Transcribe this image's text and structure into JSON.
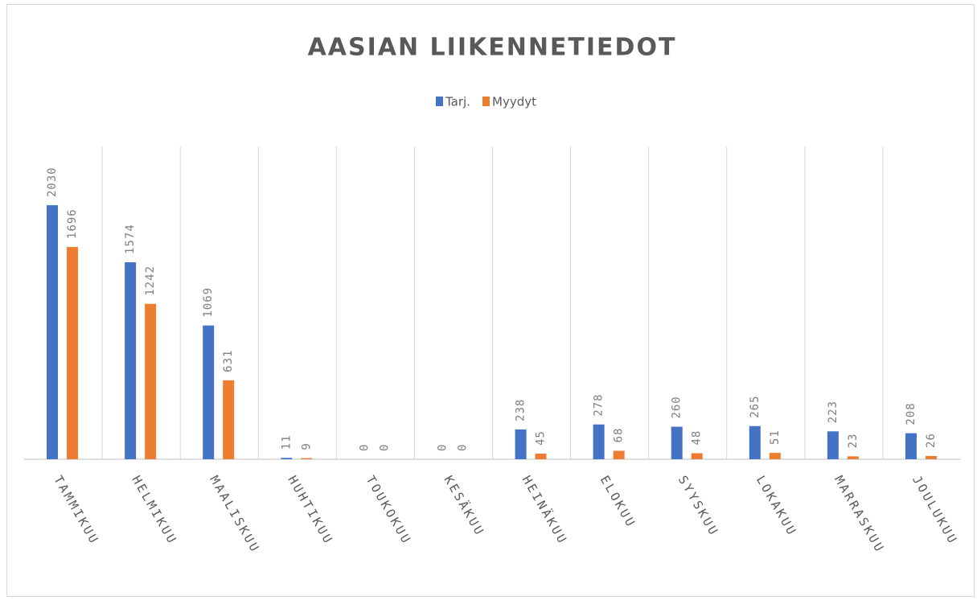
{
  "chart_data": {
    "type": "bar",
    "title": "AASIAN LIIKENNETIEDOT",
    "categories": [
      "TAMMIKUU",
      "HELMIKUU",
      "MAALISKUU",
      "HUHTIKUU",
      "TOUKOKUU",
      "KESÄKUU",
      "HEINÄKUU",
      "ELOKUU",
      "SYYSKUU",
      "LOKAKUU",
      "MARRASKUU",
      "JOULUKUU"
    ],
    "series": [
      {
        "name": "Tarj.",
        "color": "#4472c4",
        "values": [
          2030,
          1574,
          1069,
          11,
          0,
          0,
          238,
          278,
          260,
          265,
          223,
          208
        ]
      },
      {
        "name": "Myydyt",
        "color": "#ed7d31",
        "values": [
          1696,
          1242,
          631,
          9,
          0,
          0,
          45,
          68,
          48,
          51,
          23,
          26
        ]
      }
    ],
    "ylim": [
      0,
      2500
    ],
    "legend": "top"
  }
}
